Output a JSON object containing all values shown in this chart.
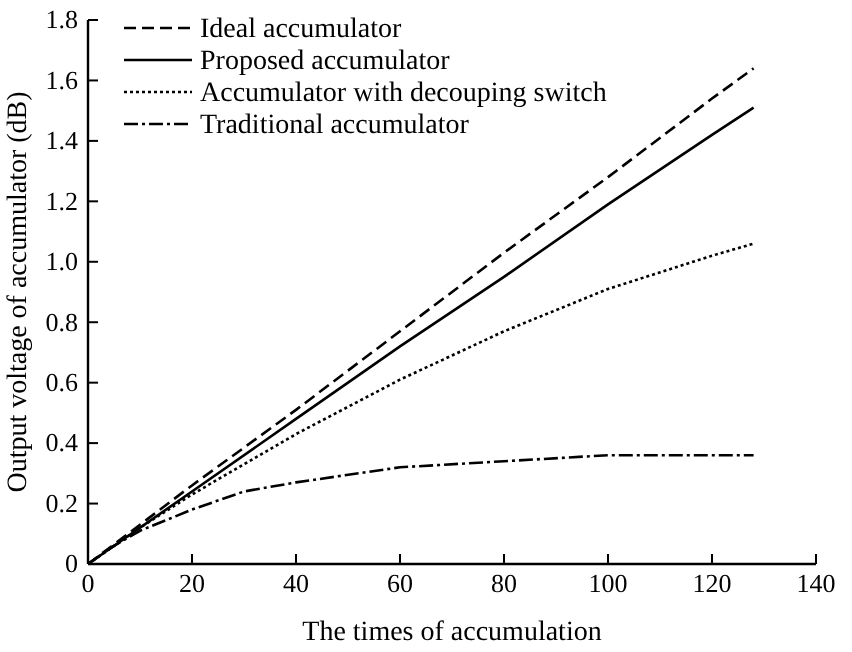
{
  "chart_data": {
    "type": "line",
    "xlabel": "The times of accumulation",
    "ylabel": "Output voltage of accumulator (dB)",
    "xlim": [
      0,
      140
    ],
    "xticks": [
      0,
      20,
      40,
      60,
      80,
      100,
      120,
      140
    ],
    "ylim": [
      0,
      1.8
    ],
    "yticks": [
      0,
      0.2,
      0.4,
      0.6,
      0.8,
      {
        "value": 1,
        "label": "1.0"
      },
      1.2,
      1.4,
      1.6,
      1.8
    ],
    "grid": false,
    "legend": "top left",
    "marker": "none",
    "series": [
      {
        "name": "Ideal accumulator",
        "color": "#000000",
        "line_style": "dashed",
        "x": [
          0,
          20,
          40,
          60,
          80,
          100,
          120,
          128
        ],
        "values": [
          0,
          0.26,
          0.51,
          0.77,
          1.03,
          1.28,
          1.54,
          1.64
        ]
      },
      {
        "name": "Proposed accumulator",
        "color": "#000000",
        "line_style": "solid",
        "x": [
          0,
          20,
          40,
          60,
          80,
          100,
          120,
          128
        ],
        "values": [
          0,
          0.24,
          0.48,
          0.72,
          0.95,
          1.19,
          1.42,
          1.51
        ]
      },
      {
        "name": "Accumulator with decouping switch",
        "color": "#000000",
        "line_style": "dotted",
        "x": [
          0,
          10,
          20,
          40,
          60,
          80,
          100,
          120,
          128
        ],
        "values": [
          0,
          0.12,
          0.23,
          0.43,
          0.61,
          0.77,
          0.91,
          1.02,
          1.06
        ]
      },
      {
        "name": "Traditional accumulator",
        "color": "#000000",
        "line_style": "dashdot",
        "x": [
          0,
          5,
          10,
          20,
          30,
          40,
          60,
          80,
          100,
          128
        ],
        "values": [
          0,
          0.06,
          0.11,
          0.18,
          0.24,
          0.27,
          0.32,
          0.34,
          0.36,
          0.36
        ]
      }
    ]
  }
}
